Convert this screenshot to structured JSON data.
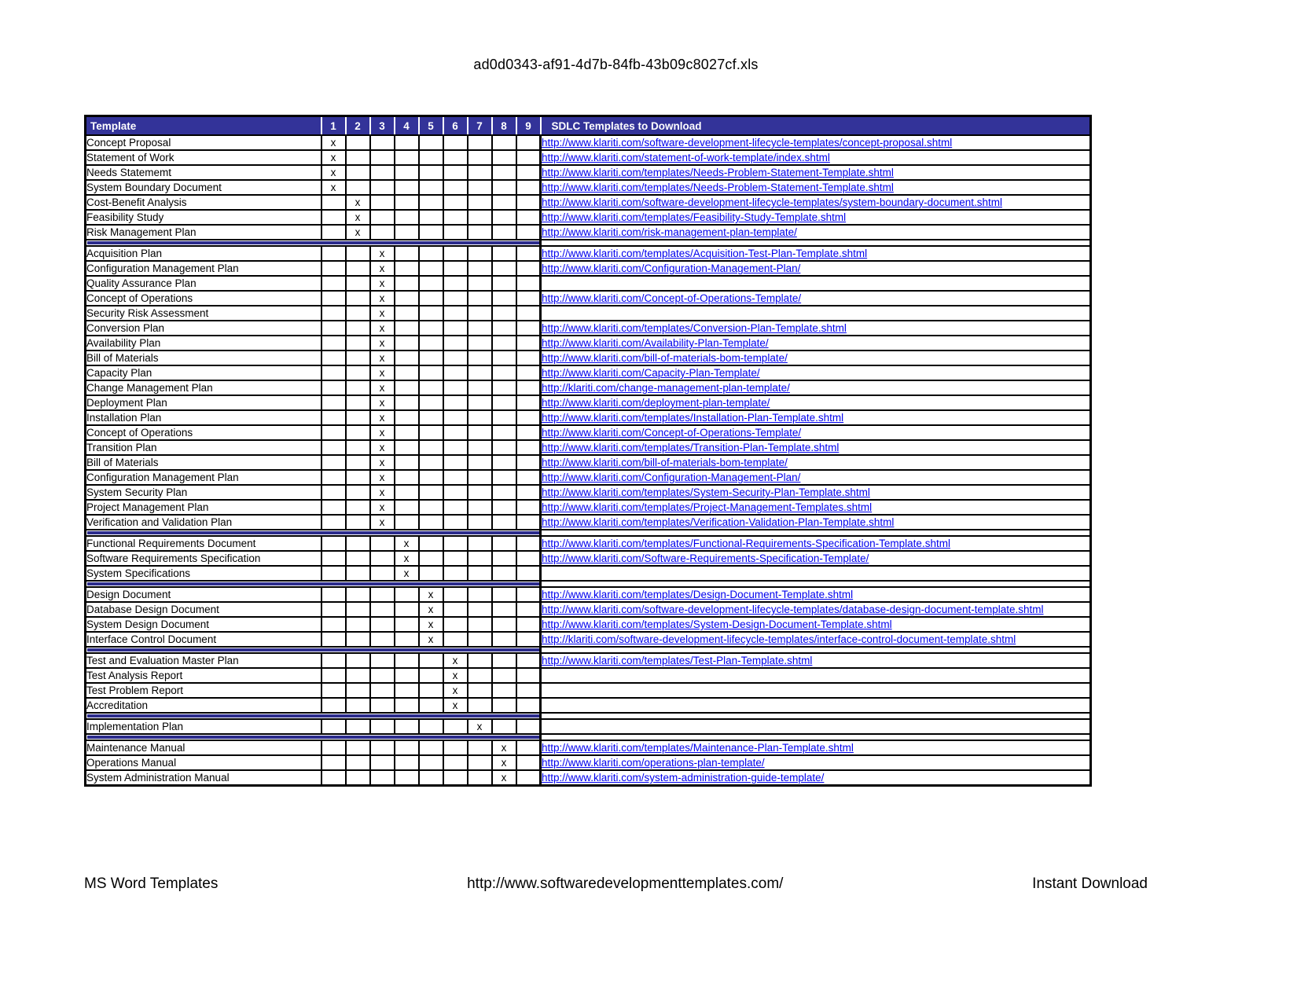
{
  "page": {
    "title": "ad0d0343-af91-4d7b-84fb-43b09c8027cf.xls",
    "footer": {
      "left": "MS Word Templates",
      "center": "http://www.softwaredevelopmenttemplates.com/",
      "right": "Instant Download"
    }
  },
  "colors": {
    "header_bg": "#333399",
    "divider_bar": "#2b2b8c",
    "link": "#0000ee",
    "border": "#000000"
  },
  "table": {
    "header": {
      "template": "Template",
      "phases": [
        "1",
        "2",
        "3",
        "4",
        "5",
        "6",
        "7",
        "8",
        "9"
      ],
      "download": "SDLC Templates to Download"
    },
    "mark": "x",
    "sections": [
      {
        "rows": [
          {
            "name": "Concept Proposal",
            "phase": 1,
            "url": "http://www.klariti.com/software-development-lifecycle-templates/concept-proposal.shtml"
          },
          {
            "name": "Statement of Work",
            "phase": 1,
            "url": "http://www.klariti.com/statement-of-work-template/index.shtml"
          },
          {
            "name": "Needs Statememt",
            "phase": 1,
            "url": "http://www.klariti.com/templates/Needs-Problem-Statement-Template.shtml"
          },
          {
            "name": "System Boundary Document",
            "phase": 1,
            "url": "http://www.klariti.com/templates/Needs-Problem-Statement-Template.shtml"
          },
          {
            "name": "Cost-Benefit Analysis",
            "phase": 2,
            "url": "http://www.klariti.com/software-development-lifecycle-templates/system-boundary-document.shtml"
          },
          {
            "name": "Feasibility Study",
            "phase": 2,
            "url": "http://www.klariti.com/templates/Feasibility-Study-Template.shtml"
          },
          {
            "name": "Risk Management Plan",
            "phase": 2,
            "url": "http://www.klariti.com/risk-management-plan-template/"
          }
        ]
      },
      {
        "rows": [
          {
            "name": "Acquisition Plan",
            "phase": 3,
            "url": "http://www.klariti.com/templates/Acquisition-Test-Plan-Template.shtml"
          },
          {
            "name": "Configuration Management Plan",
            "phase": 3,
            "url": "http://www.klariti.com/Configuration-Management-Plan/"
          },
          {
            "name": "Quality Assurance Plan",
            "phase": 3,
            "url": ""
          },
          {
            "name": "Concept of Operations",
            "phase": 3,
            "url": "http://www.klariti.com/Concept-of-Operations-Template/"
          },
          {
            "name": "Security Risk Assessment",
            "phase": 3,
            "url": ""
          },
          {
            "name": "Conversion Plan",
            "phase": 3,
            "url": "http://www.klariti.com/templates/Conversion-Plan-Template.shtml"
          },
          {
            "name": "Availability Plan",
            "phase": 3,
            "url": "http://www.klariti.com/Availability-Plan-Template/"
          },
          {
            "name": "Bill of Materials",
            "phase": 3,
            "url": "http://www.klariti.com/bill-of-materials-bom-template/"
          },
          {
            "name": "Capacity Plan",
            "phase": 3,
            "url": "http://www.klariti.com/Capacity-Plan-Template/"
          },
          {
            "name": "Change Management Plan",
            "phase": 3,
            "url": "http://klariti.com/change-management-plan-template/"
          },
          {
            "name": "Deployment Plan",
            "phase": 3,
            "url": "http://www.klariti.com/deployment-plan-template/"
          },
          {
            "name": "Installation Plan",
            "phase": 3,
            "url": "http://www.klariti.com/templates/Installation-Plan-Template.shtml"
          },
          {
            "name": "Concept of Operations",
            "phase": 3,
            "url": "http://www.klariti.com/Concept-of-Operations-Template/"
          },
          {
            "name": "Transition Plan",
            "phase": 3,
            "url": "http://www.klariti.com/templates/Transition-Plan-Template.shtml"
          },
          {
            "name": "Bill of Materials",
            "phase": 3,
            "url": "http://www.klariti.com/bill-of-materials-bom-template/"
          },
          {
            "name": "Configuration Management Plan",
            "phase": 3,
            "url": "http://www.klariti.com/Configuration-Management-Plan/"
          },
          {
            "name": "System Security Plan",
            "phase": 3,
            "url": "http://www.klariti.com/templates/System-Security-Plan-Template.shtml"
          },
          {
            "name": "Project Management Plan",
            "phase": 3,
            "url": "http://www.klariti.com/templates/Project-Management-Templates.shtml"
          },
          {
            "name": "Verification and Validation Plan",
            "phase": 3,
            "url": "http://www.klariti.com/templates/Verification-Validation-Plan-Template.shtml"
          }
        ]
      },
      {
        "rows": [
          {
            "name": "Functional Requirements Document",
            "phase": 4,
            "url": "http://www.klariti.com/templates/Functional-Requirements-Specification-Template.shtml"
          },
          {
            "name": "Software Requirements Specification",
            "phase": 4,
            "url": "http://www.klariti.com/Software-Requirements-Specification-Template/"
          },
          {
            "name": "System Specifications",
            "phase": 4,
            "url": ""
          }
        ]
      },
      {
        "rows": [
          {
            "name": "Design Document",
            "phase": 5,
            "url": "http://www.klariti.com/templates/Design-Document-Template.shtml"
          },
          {
            "name": "Database Design Document",
            "phase": 5,
            "url": "http://www.klariti.com/software-development-lifecycle-templates/database-design-document-template.shtml"
          },
          {
            "name": "System Design Document",
            "phase": 5,
            "url": "http://www.klariti.com/templates/System-Design-Document-Template.shtml"
          },
          {
            "name": "Interface Control Document",
            "phase": 5,
            "url": "http://klariti.com/software-development-lifecycle-templates/interface-control-document-template.shtml"
          }
        ]
      },
      {
        "rows": [
          {
            "name": "Test and Evaluation Master Plan",
            "phase": 6,
            "url": "http://www.klariti.com/templates/Test-Plan-Template.shtml"
          },
          {
            "name": "Test Analysis Report",
            "phase": 6,
            "url": ""
          },
          {
            "name": "Test Problem Report",
            "phase": 6,
            "url": ""
          },
          {
            "name": "Accreditation",
            "phase": 6,
            "url": ""
          }
        ]
      },
      {
        "rows": [
          {
            "name": "Implementation Plan",
            "phase": 7,
            "url": ""
          }
        ]
      },
      {
        "rows": [
          {
            "name": "Maintenance Manual",
            "phase": 8,
            "url": "http://www.klariti.com/templates/Maintenance-Plan-Template.shtml"
          },
          {
            "name": "Operations Manual",
            "phase": 8,
            "url": "http://www.klariti.com/operations-plan-template/"
          },
          {
            "name": "System Administration Manual",
            "phase": 8,
            "url": "http://www.klariti.com/system-administration-guide-template/"
          }
        ]
      }
    ]
  }
}
